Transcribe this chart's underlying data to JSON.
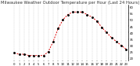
{
  "title": "Milwaukee Weather Outdoor Temperature per Hour (Last 24 Hours)",
  "hours": [
    0,
    1,
    2,
    3,
    4,
    5,
    6,
    7,
    8,
    9,
    10,
    11,
    12,
    13,
    14,
    15,
    16,
    17,
    18,
    19,
    20,
    21,
    22,
    23
  ],
  "temps": [
    24,
    23,
    23,
    22,
    22,
    22,
    22,
    25,
    33,
    43,
    50,
    54,
    56,
    56,
    56,
    54,
    52,
    49,
    44,
    40,
    36,
    33,
    30,
    27
  ],
  "line_color": "#dd0000",
  "dot_color": "#000000",
  "bg_color": "#ffffff",
  "grid_color": "#aaaaaa",
  "ylim": [
    18,
    62
  ],
  "yticks": [
    20,
    25,
    30,
    35,
    40,
    45,
    50,
    55,
    60
  ],
  "ytick_labels": [
    "20",
    "25",
    "30",
    "35",
    "40",
    "45",
    "50",
    "55",
    "60"
  ],
  "title_fontsize": 3.8,
  "tick_fontsize": 2.8,
  "linewidth": 0.7,
  "dot_size": 1.2
}
